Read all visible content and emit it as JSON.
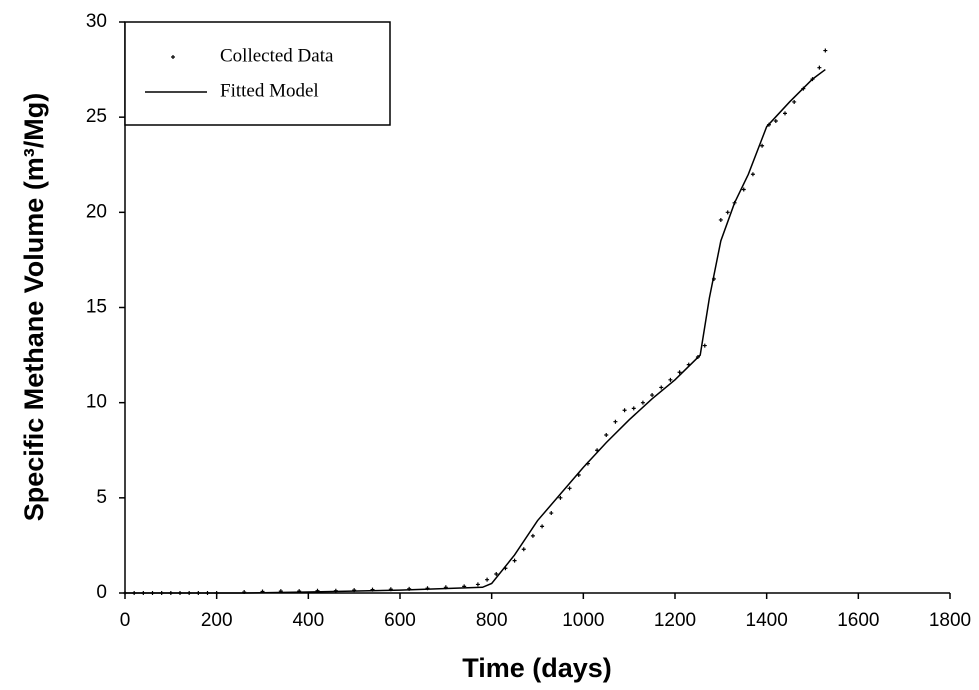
{
  "chart_data": {
    "type": "scatter",
    "x_label": "Time (days)",
    "y_label": "Specific Methane Volume (m³/Mg)",
    "xlim": [
      0,
      1800
    ],
    "xticks": [
      0,
      200,
      400,
      600,
      800,
      1000,
      1200,
      1400,
      1600,
      1800
    ],
    "ylim": [
      0,
      30
    ],
    "yticks": [
      0,
      5,
      10,
      15,
      20,
      25,
      30
    ],
    "legend": "upper-left",
    "series": [
      {
        "name": "Collected Data",
        "type": "scatter",
        "color": "#000000",
        "x": [
          0,
          20,
          40,
          60,
          80,
          100,
          120,
          140,
          160,
          180,
          200,
          260,
          300,
          340,
          380,
          420,
          460,
          500,
          540,
          580,
          620,
          660,
          700,
          740,
          770,
          790,
          810,
          830,
          850,
          870,
          890,
          910,
          930,
          950,
          970,
          990,
          1010,
          1030,
          1050,
          1070,
          1090,
          1110,
          1130,
          1150,
          1170,
          1190,
          1210,
          1230,
          1250,
          1265,
          1285,
          1300,
          1315,
          1330,
          1350,
          1370,
          1390,
          1405,
          1420,
          1440,
          1460,
          1480,
          1500,
          1515,
          1528
        ],
        "values": [
          0,
          0,
          0,
          0,
          0,
          0,
          0,
          0,
          0,
          0,
          0,
          0.05,
          0.08,
          0.1,
          0.1,
          0.12,
          0.12,
          0.15,
          0.18,
          0.2,
          0.22,
          0.25,
          0.3,
          0.35,
          0.45,
          0.7,
          1.0,
          1.3,
          1.7,
          2.3,
          3.0,
          3.5,
          4.2,
          5.0,
          5.5,
          6.2,
          6.8,
          7.5,
          8.3,
          9.0,
          9.6,
          9.7,
          10.0,
          10.4,
          10.8,
          11.2,
          11.6,
          12.0,
          12.4,
          13.0,
          16.5,
          19.6,
          20.0,
          20.5,
          21.2,
          22.0,
          23.5,
          24.6,
          24.8,
          25.2,
          25.8,
          26.5,
          27.0,
          27.6,
          28.5
        ]
      },
      {
        "name": "Fitted Model",
        "type": "line",
        "color": "#000000",
        "x": [
          0,
          260,
          400,
          600,
          780,
          800,
          850,
          900,
          950,
          1000,
          1050,
          1100,
          1150,
          1200,
          1255,
          1275,
          1300,
          1330,
          1360,
          1400,
          1450,
          1500,
          1528
        ],
        "values": [
          0,
          0,
          0.05,
          0.15,
          0.3,
          0.5,
          2.0,
          3.8,
          5.2,
          6.6,
          7.9,
          9.1,
          10.2,
          11.2,
          12.5,
          15.5,
          18.5,
          20.5,
          22.0,
          24.5,
          25.8,
          27.0,
          27.5
        ]
      }
    ]
  }
}
